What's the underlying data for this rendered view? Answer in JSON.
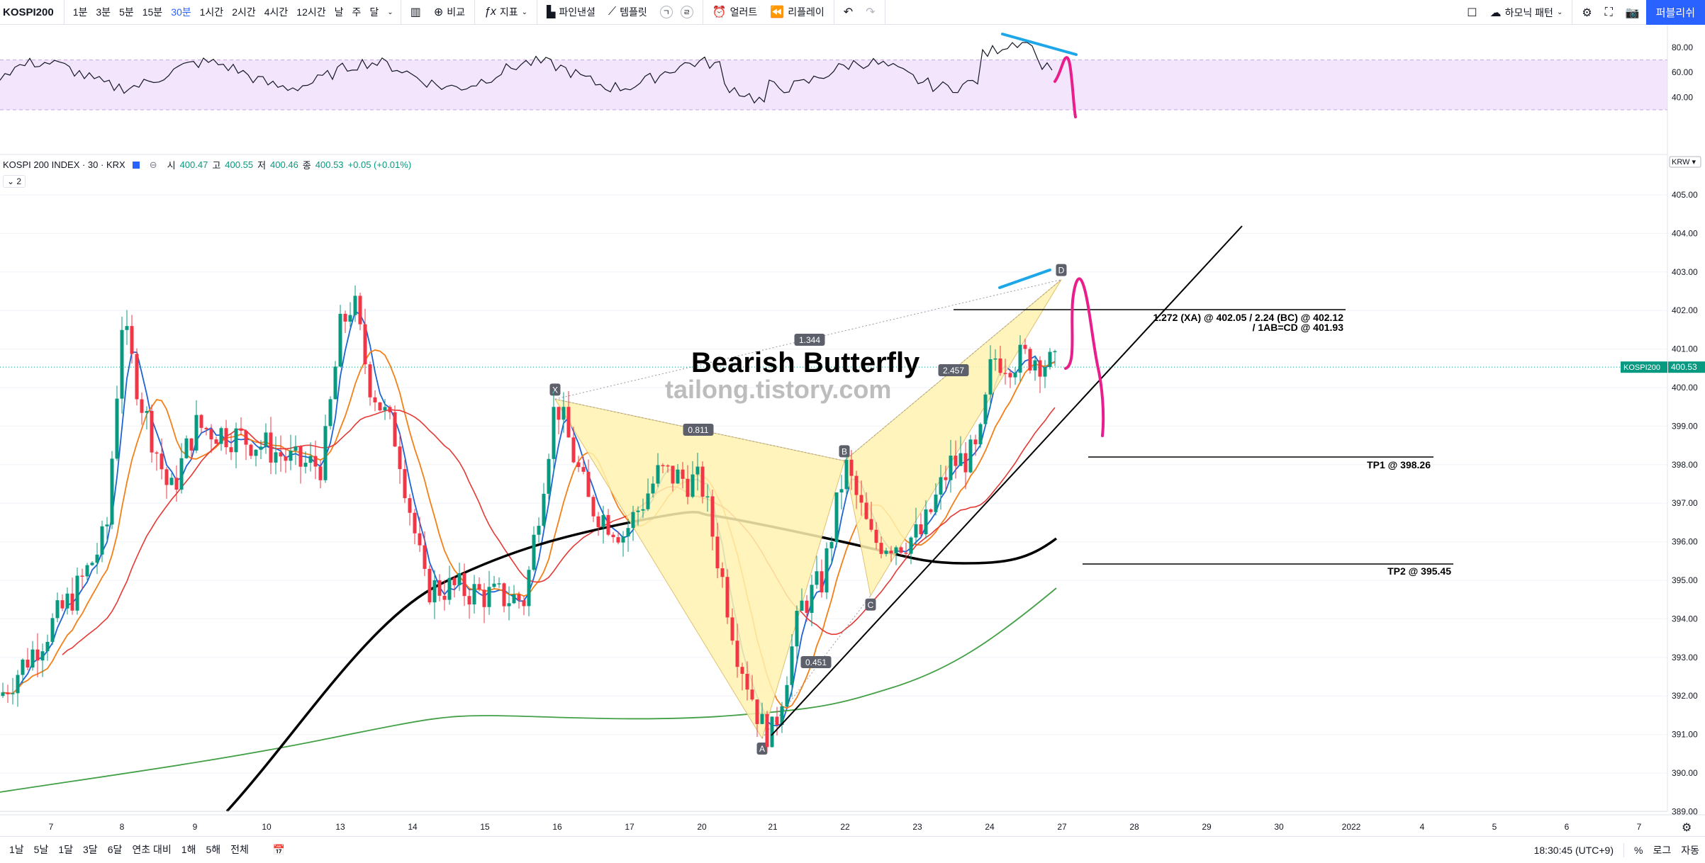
{
  "toolbar": {
    "symbol": "KOSPI200",
    "intervals": [
      "1분",
      "3분",
      "5분",
      "15분",
      "30분",
      "1시간",
      "2시간",
      "4시간",
      "12시간",
      "날",
      "주",
      "달"
    ],
    "active_interval": "30분",
    "compare": "비교",
    "indicators": "지표",
    "pine": "파인낸셜",
    "templates": "템플릿",
    "alert": "얼러트",
    "replay": "리플레이",
    "harmonic": "하모닉 패턴",
    "publish": "퍼블리쉬"
  },
  "legend": {
    "title": "KOSPI 200 INDEX · 30 · KRX",
    "open_label": "시",
    "open": "400.47",
    "high_label": "고",
    "high": "400.55",
    "low_label": "저",
    "low": "400.46",
    "close_label": "종",
    "close": "400.53",
    "change": "+0.05 (+0.01%)",
    "collapse": "2"
  },
  "price_axis": {
    "currency": "KRW",
    "symbol_tag": "KOSPI200",
    "last_price": "400.53",
    "labels": [
      "405.00",
      "404.00",
      "403.00",
      "402.00",
      "401.00",
      "400.00",
      "399.00",
      "398.00",
      "397.00",
      "396.00",
      "395.00",
      "394.00",
      "393.00",
      "392.00",
      "391.00",
      "390.00",
      "389.00"
    ],
    "rsi_labels": [
      "80.00",
      "60.00",
      "40.00"
    ]
  },
  "time_axis": [
    "7",
    "8",
    "9",
    "10",
    "13",
    "14",
    "15",
    "16",
    "17",
    "20",
    "21",
    "22",
    "23",
    "24",
    "27",
    "28",
    "29",
    "30",
    "2022",
    "4",
    "5",
    "6",
    "7"
  ],
  "pattern": {
    "title": "Bearish Butterfly",
    "watermark": "tailong.tistory.com",
    "points": {
      "X": "X",
      "A": "A",
      "B": "B",
      "C": "C",
      "D": "D"
    },
    "ratios": {
      "xab": "0.811",
      "abc": "0.451",
      "bcd": "2.457",
      "xad": "1.344"
    }
  },
  "annotations": {
    "target_line1": "1.272 (XA) @ 402.05 / 2.24 (BC) @ 402.12",
    "target_line2": "/ 1AB=CD @ 401.93",
    "tp1": "TP1 @ 398.26",
    "tp2": "TP2 @ 395.45"
  },
  "bottombar": {
    "ranges": [
      "1날",
      "5날",
      "1달",
      "3달",
      "6달",
      "연초 대비",
      "1해",
      "5해",
      "전체"
    ],
    "clock": "18:30:45 (UTC+9)",
    "percent": "%",
    "log": "로그",
    "auto": "자동"
  },
  "colors": {
    "up": "#089981",
    "down": "#f23645",
    "ma_blue": "#1e63d6",
    "ma_orange": "#f57f17",
    "ma_red": "#e53935",
    "ma_green": "#43a047",
    "ma_black": "#000000",
    "pattern_fill": "#fff3b0",
    "rsi_bg": "#f3e5fc",
    "magenta": "#e91e8c",
    "cyan": "#1ea7e8"
  }
}
